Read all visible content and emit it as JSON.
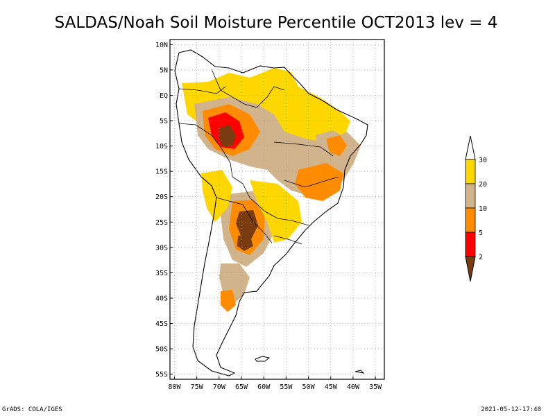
{
  "title": "SALDAS/Noah Soil Moisture Percentile OCT2013 lev = 4",
  "footer": {
    "left": "GrADS: COLA/IGES",
    "right": "2021-05-12-17:40"
  },
  "axes": {
    "lat_ticks": [
      "10N",
      "5N",
      "EQ",
      "5S",
      "10S",
      "15S",
      "20S",
      "25S",
      "30S",
      "35S",
      "40S",
      "45S",
      "50S",
      "55S"
    ],
    "lat_values": [
      10,
      5,
      0,
      -5,
      -10,
      -15,
      -20,
      -25,
      -30,
      -35,
      -40,
      -45,
      -50,
      -55
    ],
    "lon_ticks": [
      "80W",
      "75W",
      "70W",
      "65W",
      "60W",
      "55W",
      "50W",
      "45W",
      "40W",
      "35W"
    ],
    "lon_values": [
      -80,
      -75,
      -70,
      -65,
      -60,
      -55,
      -50,
      -45,
      -40,
      -35
    ],
    "lat_range": [
      -56,
      11
    ],
    "lon_range": [
      -81,
      -33
    ],
    "grid": true
  },
  "legend": {
    "labels": [
      "2",
      "5",
      "10",
      "20",
      "30"
    ],
    "colors": [
      "#7a3b10",
      "#ff0000",
      "#ff8c00",
      "#d2b48c",
      "#ffd700"
    ],
    "under_color": "#7a3b10",
    "over_color": "#ffffff"
  },
  "colors": {
    "frame": "#000000",
    "grid": "#9a9a9a"
  }
}
